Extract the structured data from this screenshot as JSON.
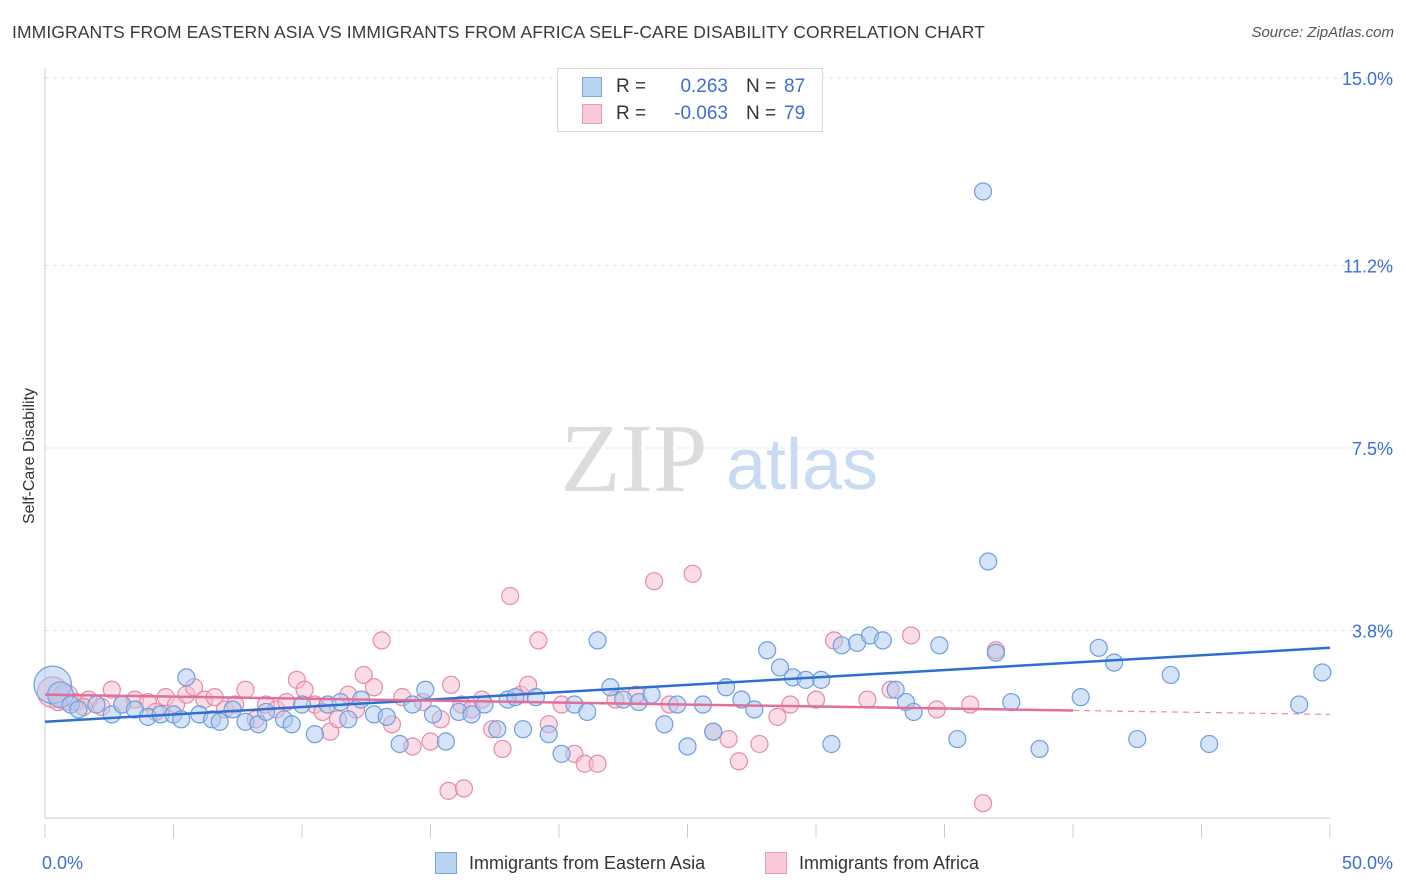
{
  "title": "IMMIGRANTS FROM EASTERN ASIA VS IMMIGRANTS FROM AFRICA SELF-CARE DISABILITY CORRELATION CHART",
  "source": "Source: ZipAtlas.com",
  "watermark": {
    "zip": "ZIP",
    "atlas": "atlas"
  },
  "legend": {
    "rows": [
      {
        "r_label": "R =",
        "r_value": "0.263",
        "n_label": "N =",
        "n_value": "87"
      },
      {
        "r_label": "R =",
        "r_value": "-0.063",
        "n_label": "N =",
        "n_value": "79"
      }
    ]
  },
  "colors": {
    "blue_fill": "#aac8f0",
    "blue_stroke": "#6f9fdc",
    "blue_line": "#2f6fcf",
    "pink_fill": "#f6bcd0",
    "pink_stroke": "#e88aaa",
    "pink_line": "#e0709a",
    "tick_text": "#3b6fd1",
    "grid": "#e2e2e2"
  },
  "chart_data": {
    "type": "scatter",
    "title": "IMMIGRANTS FROM EASTERN ASIA VS IMMIGRANTS FROM AFRICA SELF-CARE DISABILITY CORRELATION CHART",
    "xlabel": "",
    "ylabel": "Self-Care Disability",
    "xlim": [
      0,
      50
    ],
    "ylim": [
      0,
      15.4
    ],
    "x_tick_labels": [
      "0.0%",
      "50.0%"
    ],
    "y_ticks": [
      3.8,
      7.5,
      11.2,
      15.0
    ],
    "y_tick_labels": [
      "3.8%",
      "7.5%",
      "11.2%",
      "15.0%"
    ],
    "grid": true,
    "legend_position": "top-center",
    "series": [
      {
        "name": "Immigrants from Eastern Asia",
        "r": 0.263,
        "n": 87,
        "trend": {
          "x": [
            0,
            50
          ],
          "y": [
            1.95,
            3.45
          ]
        },
        "points": [
          {
            "x": 0.3,
            "y": 2.7,
            "s": 2.2
          },
          {
            "x": 0.6,
            "y": 2.5,
            "s": 1.5
          },
          {
            "x": 1.0,
            "y": 2.3
          },
          {
            "x": 1.3,
            "y": 2.2
          },
          {
            "x": 2.0,
            "y": 2.3
          },
          {
            "x": 2.6,
            "y": 2.1
          },
          {
            "x": 3.0,
            "y": 2.3
          },
          {
            "x": 3.5,
            "y": 2.2
          },
          {
            "x": 4.0,
            "y": 2.05
          },
          {
            "x": 4.5,
            "y": 2.1
          },
          {
            "x": 5.0,
            "y": 2.1
          },
          {
            "x": 5.3,
            "y": 2.0
          },
          {
            "x": 5.5,
            "y": 2.85
          },
          {
            "x": 6.0,
            "y": 2.1
          },
          {
            "x": 6.5,
            "y": 2.0
          },
          {
            "x": 6.8,
            "y": 1.95
          },
          {
            "x": 7.3,
            "y": 2.2
          },
          {
            "x": 7.8,
            "y": 1.95
          },
          {
            "x": 8.3,
            "y": 1.9
          },
          {
            "x": 8.6,
            "y": 2.15
          },
          {
            "x": 9.3,
            "y": 2.0
          },
          {
            "x": 9.6,
            "y": 1.9
          },
          {
            "x": 10.0,
            "y": 2.3
          },
          {
            "x": 10.5,
            "y": 1.7
          },
          {
            "x": 11.0,
            "y": 2.3
          },
          {
            "x": 11.5,
            "y": 2.35
          },
          {
            "x": 11.8,
            "y": 2.0
          },
          {
            "x": 12.3,
            "y": 2.4
          },
          {
            "x": 12.8,
            "y": 2.1
          },
          {
            "x": 13.3,
            "y": 2.05
          },
          {
            "x": 13.8,
            "y": 1.5
          },
          {
            "x": 14.3,
            "y": 2.3
          },
          {
            "x": 14.8,
            "y": 2.6
          },
          {
            "x": 15.1,
            "y": 2.1
          },
          {
            "x": 15.6,
            "y": 1.55
          },
          {
            "x": 16.1,
            "y": 2.15
          },
          {
            "x": 16.6,
            "y": 2.1
          },
          {
            "x": 17.1,
            "y": 2.3
          },
          {
            "x": 17.6,
            "y": 1.8
          },
          {
            "x": 18.0,
            "y": 2.4
          },
          {
            "x": 18.3,
            "y": 2.45
          },
          {
            "x": 18.6,
            "y": 1.8
          },
          {
            "x": 19.1,
            "y": 2.45
          },
          {
            "x": 19.6,
            "y": 1.7
          },
          {
            "x": 20.1,
            "y": 1.3
          },
          {
            "x": 20.6,
            "y": 2.3
          },
          {
            "x": 21.1,
            "y": 2.15
          },
          {
            "x": 21.5,
            "y": 3.6
          },
          {
            "x": 22.0,
            "y": 2.65
          },
          {
            "x": 22.5,
            "y": 2.4
          },
          {
            "x": 23.1,
            "y": 2.35
          },
          {
            "x": 23.6,
            "y": 2.5
          },
          {
            "x": 24.1,
            "y": 1.9
          },
          {
            "x": 24.6,
            "y": 2.3
          },
          {
            "x": 25.0,
            "y": 1.45
          },
          {
            "x": 25.6,
            "y": 2.3
          },
          {
            "x": 26.0,
            "y": 1.75
          },
          {
            "x": 26.5,
            "y": 2.65
          },
          {
            "x": 27.1,
            "y": 2.4
          },
          {
            "x": 27.6,
            "y": 2.2
          },
          {
            "x": 28.1,
            "y": 3.4
          },
          {
            "x": 28.6,
            "y": 3.05
          },
          {
            "x": 29.1,
            "y": 2.85
          },
          {
            "x": 29.6,
            "y": 2.8
          },
          {
            "x": 30.2,
            "y": 2.8
          },
          {
            "x": 30.6,
            "y": 1.5
          },
          {
            "x": 31.0,
            "y": 3.5
          },
          {
            "x": 31.6,
            "y": 3.55
          },
          {
            "x": 32.1,
            "y": 3.7
          },
          {
            "x": 32.6,
            "y": 3.6
          },
          {
            "x": 33.1,
            "y": 2.6
          },
          {
            "x": 33.5,
            "y": 2.35
          },
          {
            "x": 33.8,
            "y": 2.15
          },
          {
            "x": 34.8,
            "y": 3.5
          },
          {
            "x": 35.5,
            "y": 1.6
          },
          {
            "x": 36.5,
            "y": 12.7
          },
          {
            "x": 36.7,
            "y": 5.2
          },
          {
            "x": 37.0,
            "y": 3.35
          },
          {
            "x": 37.6,
            "y": 2.35
          },
          {
            "x": 38.7,
            "y": 1.4
          },
          {
            "x": 40.3,
            "y": 2.45
          },
          {
            "x": 41.0,
            "y": 3.45
          },
          {
            "x": 41.6,
            "y": 3.15
          },
          {
            "x": 42.5,
            "y": 1.6
          },
          {
            "x": 43.8,
            "y": 2.9
          },
          {
            "x": 45.3,
            "y": 1.5
          },
          {
            "x": 48.8,
            "y": 2.3
          },
          {
            "x": 49.7,
            "y": 2.95
          }
        ]
      },
      {
        "name": "Immigrants from Africa",
        "r": -0.063,
        "n": 79,
        "trend": {
          "x": [
            0,
            40
          ],
          "y": [
            2.5,
            2.18
          ]
        },
        "trend_dashed": {
          "x": [
            40,
            50
          ],
          "y": [
            2.18,
            2.1
          ]
        },
        "points": [
          {
            "x": 0.3,
            "y": 2.55,
            "s": 1.8
          },
          {
            "x": 0.8,
            "y": 2.45,
            "s": 1.5
          },
          {
            "x": 1.2,
            "y": 2.35
          },
          {
            "x": 1.7,
            "y": 2.4
          },
          {
            "x": 2.2,
            "y": 2.25
          },
          {
            "x": 2.6,
            "y": 2.6
          },
          {
            "x": 3.0,
            "y": 2.3
          },
          {
            "x": 3.5,
            "y": 2.4
          },
          {
            "x": 4.0,
            "y": 2.35
          },
          {
            "x": 4.3,
            "y": 2.15
          },
          {
            "x": 4.7,
            "y": 2.45
          },
          {
            "x": 5.1,
            "y": 2.3
          },
          {
            "x": 5.5,
            "y": 2.5
          },
          {
            "x": 5.8,
            "y": 2.65
          },
          {
            "x": 6.2,
            "y": 2.4
          },
          {
            "x": 6.6,
            "y": 2.45
          },
          {
            "x": 7.0,
            "y": 2.2
          },
          {
            "x": 7.4,
            "y": 2.3
          },
          {
            "x": 7.8,
            "y": 2.6
          },
          {
            "x": 8.2,
            "y": 2.0
          },
          {
            "x": 8.6,
            "y": 2.3
          },
          {
            "x": 9.0,
            "y": 2.2
          },
          {
            "x": 9.4,
            "y": 2.35
          },
          {
            "x": 9.8,
            "y": 2.8
          },
          {
            "x": 10.1,
            "y": 2.6
          },
          {
            "x": 10.5,
            "y": 2.3
          },
          {
            "x": 10.8,
            "y": 2.15
          },
          {
            "x": 11.1,
            "y": 1.75
          },
          {
            "x": 11.4,
            "y": 2.0
          },
          {
            "x": 11.8,
            "y": 2.5
          },
          {
            "x": 12.1,
            "y": 2.2
          },
          {
            "x": 12.4,
            "y": 2.9
          },
          {
            "x": 12.8,
            "y": 2.65
          },
          {
            "x": 13.1,
            "y": 3.6
          },
          {
            "x": 13.5,
            "y": 1.9
          },
          {
            "x": 13.9,
            "y": 2.45
          },
          {
            "x": 14.3,
            "y": 1.45
          },
          {
            "x": 14.7,
            "y": 2.35
          },
          {
            "x": 15.0,
            "y": 1.55
          },
          {
            "x": 15.4,
            "y": 2.0
          },
          {
            "x": 15.8,
            "y": 2.7
          },
          {
            "x": 16.2,
            "y": 2.3
          },
          {
            "x": 16.6,
            "y": 2.2
          },
          {
            "x": 17.0,
            "y": 2.4
          },
          {
            "x": 17.4,
            "y": 1.8
          },
          {
            "x": 17.8,
            "y": 1.4
          },
          {
            "x": 18.1,
            "y": 4.5
          },
          {
            "x": 18.5,
            "y": 2.5
          },
          {
            "x": 18.8,
            "y": 2.7
          },
          {
            "x": 19.2,
            "y": 3.6
          },
          {
            "x": 19.6,
            "y": 1.9
          },
          {
            "x": 20.1,
            "y": 2.3
          },
          {
            "x": 20.6,
            "y": 1.3
          },
          {
            "x": 21.0,
            "y": 1.1
          },
          {
            "x": 21.5,
            "y": 1.1
          },
          {
            "x": 22.2,
            "y": 2.4
          },
          {
            "x": 23.0,
            "y": 2.5
          },
          {
            "x": 23.7,
            "y": 4.8
          },
          {
            "x": 24.3,
            "y": 2.3
          },
          {
            "x": 25.2,
            "y": 4.95
          },
          {
            "x": 26.0,
            "y": 1.75
          },
          {
            "x": 26.6,
            "y": 1.6
          },
          {
            "x": 27.0,
            "y": 1.15
          },
          {
            "x": 27.8,
            "y": 1.5
          },
          {
            "x": 28.5,
            "y": 2.05
          },
          {
            "x": 29.0,
            "y": 2.3
          },
          {
            "x": 30.0,
            "y": 2.4
          },
          {
            "x": 30.7,
            "y": 3.6
          },
          {
            "x": 32.0,
            "y": 2.4
          },
          {
            "x": 32.9,
            "y": 2.6
          },
          {
            "x": 33.7,
            "y": 3.7
          },
          {
            "x": 34.7,
            "y": 2.2
          },
          {
            "x": 36.0,
            "y": 2.3
          },
          {
            "x": 36.5,
            "y": 0.3
          },
          {
            "x": 37.0,
            "y": 3.4
          },
          {
            "x": 0.5,
            "y": 2.35
          },
          {
            "x": 1.5,
            "y": 2.25
          },
          {
            "x": 15.7,
            "y": 0.55
          },
          {
            "x": 16.3,
            "y": 0.6
          }
        ]
      }
    ]
  },
  "bottom_legend": [
    {
      "label": "Immigrants from Eastern Asia"
    },
    {
      "label": "Immigrants from Africa"
    }
  ]
}
